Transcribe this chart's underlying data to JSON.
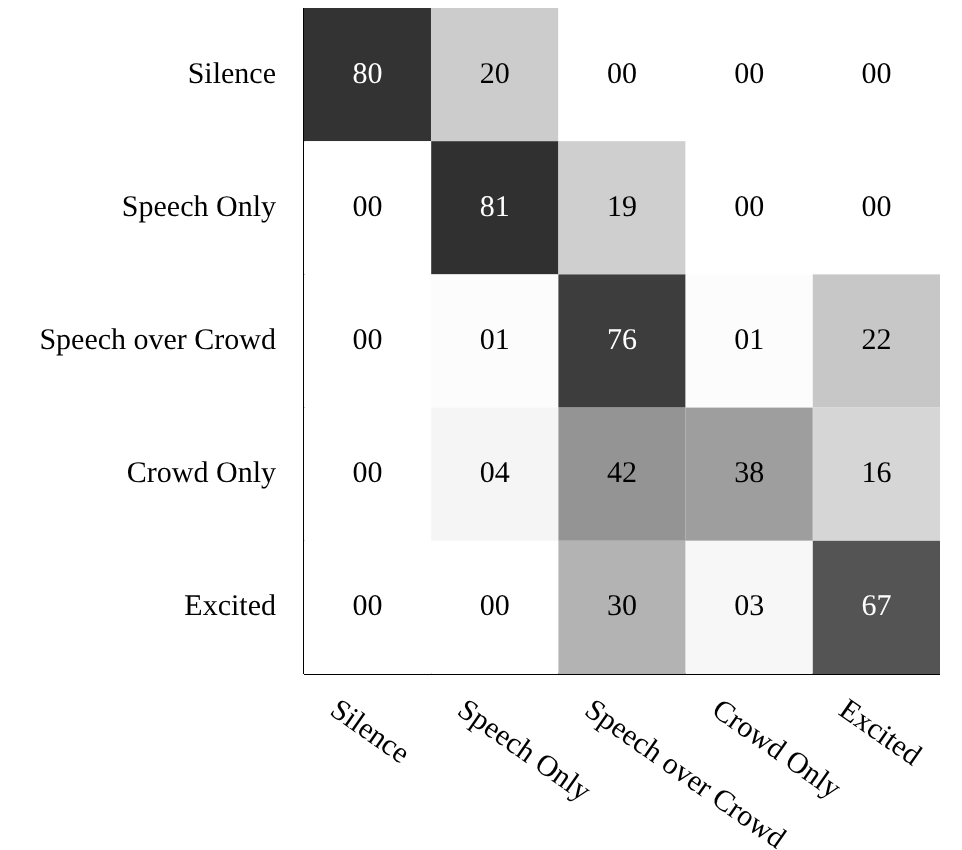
{
  "chart_data": {
    "type": "heatmap",
    "categories": [
      "Silence",
      "Speech Only",
      "Speech over Crowd",
      "Crowd Only",
      "Excited"
    ],
    "y_categories": [
      "Silence",
      "Speech Only",
      "Speech over Crowd",
      "Crowd Only",
      "Excited"
    ],
    "cells": [
      [
        80,
        20,
        0,
        0,
        0
      ],
      [
        0,
        81,
        19,
        0,
        0
      ],
      [
        0,
        1,
        76,
        1,
        22
      ],
      [
        0,
        4,
        42,
        38,
        16
      ],
      [
        0,
        0,
        30,
        3,
        67
      ]
    ],
    "cell_labels": [
      [
        "80",
        "20",
        "00",
        "00",
        "00"
      ],
      [
        "00",
        "81",
        "19",
        "00",
        "00"
      ],
      [
        "00",
        "01",
        "76",
        "01",
        "22"
      ],
      [
        "00",
        "04",
        "42",
        "38",
        "16"
      ],
      [
        "00",
        "00",
        "30",
        "03",
        "67"
      ]
    ]
  }
}
